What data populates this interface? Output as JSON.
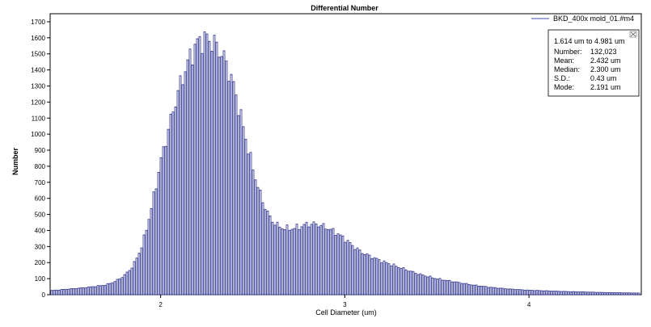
{
  "chart_data": {
    "type": "bar",
    "title": "Differential Number",
    "xlabel": "Cell Diameter (um)",
    "ylabel": "Number",
    "xlim": [
      1.4,
      4.61
    ],
    "ylim": [
      0,
      1750
    ],
    "x_ticks": [
      "2",
      "3",
      "4"
    ],
    "x_tick_values": [
      2,
      3,
      4
    ],
    "y_ticks": [
      "0",
      "100",
      "200",
      "300",
      "400",
      "500",
      "600",
      "700",
      "800",
      "900",
      "1000",
      "1100",
      "1200",
      "1300",
      "1400",
      "1500",
      "1600",
      "1700"
    ],
    "y_tick_values": [
      0,
      100,
      200,
      300,
      400,
      500,
      600,
      700,
      800,
      900,
      1000,
      1100,
      1200,
      1300,
      1400,
      1500,
      1600,
      1700
    ],
    "grid": false,
    "legend": {
      "position": "top-right",
      "entries": [
        "BKD_400x mold_01.#m4"
      ]
    },
    "series": [
      {
        "name": "BKD_400x mold_01.#m4",
        "color": "#2b2f8c",
        "points": [
          [
            1.4,
            25
          ],
          [
            1.5,
            35
          ],
          [
            1.6,
            45
          ],
          [
            1.7,
            60
          ],
          [
            1.75,
            80
          ],
          [
            1.8,
            115
          ],
          [
            1.85,
            175
          ],
          [
            1.9,
            300
          ],
          [
            1.95,
            530
          ],
          [
            2.0,
            820
          ],
          [
            2.05,
            1060
          ],
          [
            2.1,
            1280
          ],
          [
            2.15,
            1450
          ],
          [
            2.2,
            1570
          ],
          [
            2.25,
            1600
          ],
          [
            2.3,
            1560
          ],
          [
            2.35,
            1470
          ],
          [
            2.4,
            1300
          ],
          [
            2.45,
            1050
          ],
          [
            2.5,
            800
          ],
          [
            2.55,
            600
          ],
          [
            2.6,
            470
          ],
          [
            2.65,
            420
          ],
          [
            2.7,
            410
          ],
          [
            2.75,
            420
          ],
          [
            2.8,
            440
          ],
          [
            2.85,
            440
          ],
          [
            2.9,
            420
          ],
          [
            2.95,
            390
          ],
          [
            3.0,
            350
          ],
          [
            3.05,
            300
          ],
          [
            3.1,
            260
          ],
          [
            3.2,
            210
          ],
          [
            3.3,
            170
          ],
          [
            3.4,
            130
          ],
          [
            3.5,
            100
          ],
          [
            3.6,
            80
          ],
          [
            3.7,
            60
          ],
          [
            3.8,
            45
          ],
          [
            3.9,
            35
          ],
          [
            4.0,
            28
          ],
          [
            4.2,
            20
          ],
          [
            4.4,
            14
          ],
          [
            4.61,
            10
          ]
        ]
      }
    ],
    "stats": {
      "range": "1.614 um to 4.981 um",
      "rows": [
        {
          "label": "Number:",
          "value": "132,023"
        },
        {
          "label": "Mean:",
          "value": "2.432 um"
        },
        {
          "label": "Median:",
          "value": "2.300 um"
        },
        {
          "label": "S.D.:",
          "value": "0.43 um"
        },
        {
          "label": "Mode:",
          "value": "2.191 um"
        }
      ]
    }
  }
}
